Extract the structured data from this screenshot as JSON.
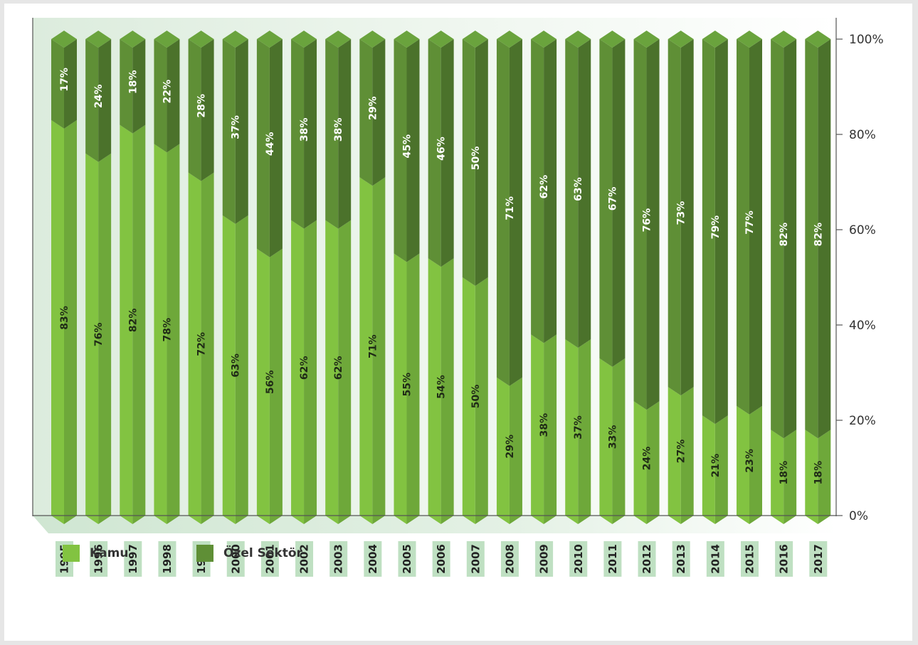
{
  "chart_data": {
    "type": "bar",
    "stacked": true,
    "percent_stacked": true,
    "categories": [
      "1995",
      "1996",
      "1997",
      "1998",
      "1999",
      "2000",
      "2001",
      "2002",
      "2003",
      "2004",
      "2005",
      "2006",
      "2007",
      "2008",
      "2009",
      "2010",
      "2011",
      "2012",
      "2013",
      "2014",
      "2015",
      "2016",
      "2017"
    ],
    "series": [
      {
        "name": "Kamu",
        "color": "#82c341",
        "values": [
          83,
          76,
          82,
          78,
          72,
          63,
          56,
          62,
          62,
          71,
          55,
          54,
          50,
          29,
          38,
          37,
          33,
          24,
          27,
          21,
          23,
          18,
          18
        ],
        "labels": [
          "83%",
          "76%",
          "82%",
          "78%",
          "72%",
          "63%",
          "56%",
          "62%",
          "62%",
          "71%",
          "55%",
          "54%",
          "50%",
          "29%",
          "38%",
          "37%",
          "33%",
          "24%",
          "27%",
          "21%",
          "23%",
          "18%",
          "18%"
        ]
      },
      {
        "name": "Özel Sektör",
        "color": "#5f8f36",
        "values": [
          17,
          24,
          18,
          22,
          28,
          37,
          44,
          38,
          38,
          29,
          45,
          46,
          50,
          71,
          62,
          63,
          67,
          76,
          73,
          79,
          77,
          82,
          82
        ],
        "labels": [
          "17%",
          "24%",
          "18%",
          "22%",
          "28%",
          "37%",
          "44%",
          "38%",
          "38%",
          "29%",
          "45%",
          "46%",
          "50%",
          "71%",
          "62%",
          "63%",
          "67%",
          "76%",
          "73%",
          "79%",
          "77%",
          "82%",
          "82%"
        ]
      }
    ],
    "y_ticks": [
      "0%",
      "20%",
      "40%",
      "60%",
      "80%",
      "100%"
    ],
    "ylim": [
      0,
      100
    ],
    "y_axis_side": "right",
    "grid": false,
    "legend_position": "bottom-left",
    "title": "",
    "xlabel": "",
    "ylabel": ""
  },
  "legend": {
    "kamu_label": "Kamu",
    "ozel_label": "Özel Sektör"
  },
  "colors": {
    "kamu_front": "#82c341",
    "kamu_side": "#6ea83a",
    "ozel_front": "#5f8f36",
    "ozel_side": "#4b722b",
    "top_face": "#6aa33d",
    "year_label_bg": "#bfe0c2",
    "axis": "#555555",
    "bar_label": "#1f2a16",
    "bar_label_top": "#ffffff"
  }
}
